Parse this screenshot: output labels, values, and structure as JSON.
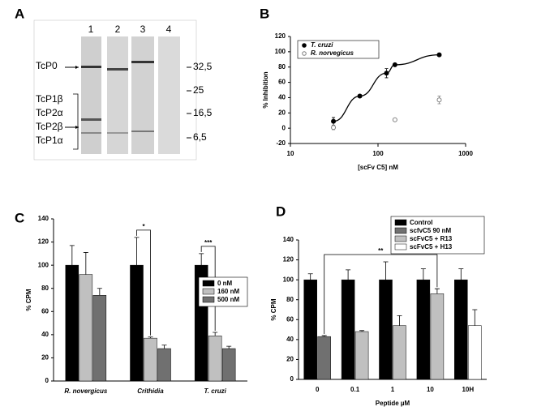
{
  "blot": {
    "panel": "A",
    "lanes": [
      "1",
      "2",
      "3",
      "4"
    ],
    "proteins": [
      "TcP0",
      "TcP1β",
      "TcP2α",
      "TcP2β",
      "TcP1α"
    ],
    "markers": [
      "32,5",
      "25",
      "16,5",
      "6,5"
    ]
  },
  "chart_data": [
    {
      "type": "scatter",
      "panel": "B",
      "xlabel": "[scFv C5] nM",
      "ylabel": "% Inhibition",
      "xscale": "log",
      "xlim": [
        10,
        1000
      ],
      "xticks": [
        10,
        100,
        1000
      ],
      "ylim": [
        -20,
        120
      ],
      "yticks": [
        -20,
        0,
        20,
        40,
        60,
        80,
        100,
        120
      ],
      "legend": "upper left",
      "series": [
        {
          "name": "T. cruzi",
          "color": "#000000",
          "filled": true,
          "fit": true,
          "x": [
            31,
            62,
            125,
            156,
            500
          ],
          "values": [
            9,
            42,
            72,
            83,
            96
          ],
          "errors": [
            5,
            2,
            6,
            1,
            2
          ]
        },
        {
          "name": "R. norvegicus",
          "color": "#808080",
          "filled": false,
          "fit": false,
          "x": [
            31,
            156,
            500
          ],
          "values": [
            1,
            11,
            37
          ],
          "errors": [
            3,
            2,
            5
          ]
        }
      ]
    },
    {
      "type": "bar",
      "panel": "C",
      "ylabel": "% CPM",
      "ylim": [
        0,
        140
      ],
      "yticks": [
        0,
        20,
        40,
        60,
        80,
        100,
        120,
        140
      ],
      "legend": "right",
      "categories": [
        "R. novergicus",
        "Crithidia",
        "T. cruzi"
      ],
      "italic_categories": true,
      "series": [
        {
          "name": "0 nM",
          "color": "#000000",
          "values": [
            100,
            100,
            100
          ],
          "errors": [
            17,
            24,
            10
          ]
        },
        {
          "name": "160 nM",
          "color": "#c0c0c0",
          "values": [
            92,
            37,
            39
          ],
          "errors": [
            19,
            1,
            3
          ]
        },
        {
          "name": "500 nM",
          "color": "#707070",
          "values": [
            74,
            28,
            28
          ],
          "errors": [
            6,
            3,
            2
          ]
        }
      ],
      "annotations": [
        {
          "text": "*",
          "from": [
            "Crithidia",
            "0 nM"
          ],
          "to": [
            "Crithidia",
            "160 nM"
          ]
        },
        {
          "text": "***",
          "from": [
            "T. cruzi",
            "0 nM"
          ],
          "to": [
            "T. cruzi",
            "160 nM"
          ]
        }
      ]
    },
    {
      "type": "bar",
      "panel": "D",
      "xlabel": "Peptide µM",
      "ylabel": "% CPM",
      "ylim": [
        0,
        140
      ],
      "yticks": [
        0,
        20,
        40,
        60,
        80,
        100,
        120,
        140
      ],
      "legend": "upper right",
      "categories": [
        "0",
        "0.1",
        "1",
        "10",
        "10H"
      ],
      "italic_categories": false,
      "series": [
        {
          "name": "Control",
          "color": "#000000",
          "values": [
            100,
            100,
            100,
            100,
            100
          ],
          "errors": [
            6,
            10,
            18,
            11,
            11
          ]
        },
        {
          "name": "scfvC5 90 nM",
          "color": "#707070",
          "values": [
            43,
            null,
            null,
            null,
            null
          ],
          "errors": [
            1,
            null,
            null,
            null,
            null
          ]
        },
        {
          "name": "scFvC5 + R13",
          "color": "#c0c0c0",
          "values": [
            null,
            48,
            54,
            86,
            null
          ],
          "errors": [
            null,
            1,
            10,
            5,
            null
          ]
        },
        {
          "name": "scFvC5 + H13",
          "color": "#ffffff",
          "values": [
            null,
            null,
            null,
            null,
            54
          ],
          "errors": [
            null,
            null,
            null,
            null,
            16
          ]
        }
      ],
      "annotations": [
        {
          "text": "**",
          "from": [
            "0",
            "scfvC5 90 nM"
          ],
          "to": [
            "10",
            "scFvC5 + R13"
          ]
        }
      ]
    }
  ]
}
